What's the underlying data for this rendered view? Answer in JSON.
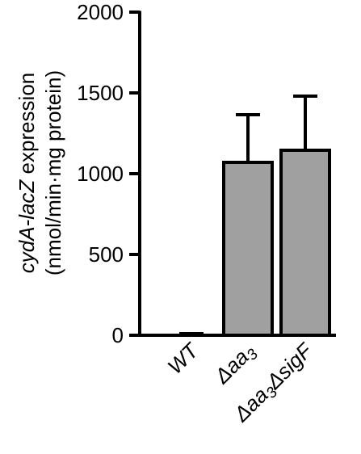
{
  "chart_data": {
    "type": "bar",
    "categories": [
      "WT",
      "Δaa3",
      "Δaa3ΔsigF"
    ],
    "category_labels": [
      [
        {
          "t": "WT"
        }
      ],
      [
        {
          "t": "Δ"
        },
        {
          "t": "aa"
        },
        {
          "t": "3",
          "sub": true
        }
      ],
      [
        {
          "t": "Δ"
        },
        {
          "t": "aa"
        },
        {
          "t": "3",
          "sub": true
        },
        {
          "t": "Δ"
        },
        {
          "t": "sigF"
        }
      ]
    ],
    "values": [
      5,
      1070,
      1145
    ],
    "errors": [
      5,
      295,
      335
    ],
    "ylim": [
      0,
      2000
    ],
    "yticks": [
      "0",
      "500",
      "1000",
      "1500",
      "2000"
    ],
    "ylabel_line1": [
      {
        "t": "cydA-lacZ",
        "italic": true
      },
      {
        "t": " expression",
        "italic": false
      }
    ],
    "ylabel_line2": "(nmol/min·mg protein)",
    "bar_fill": "#a0a0a0",
    "bar_stroke": "#000000"
  }
}
